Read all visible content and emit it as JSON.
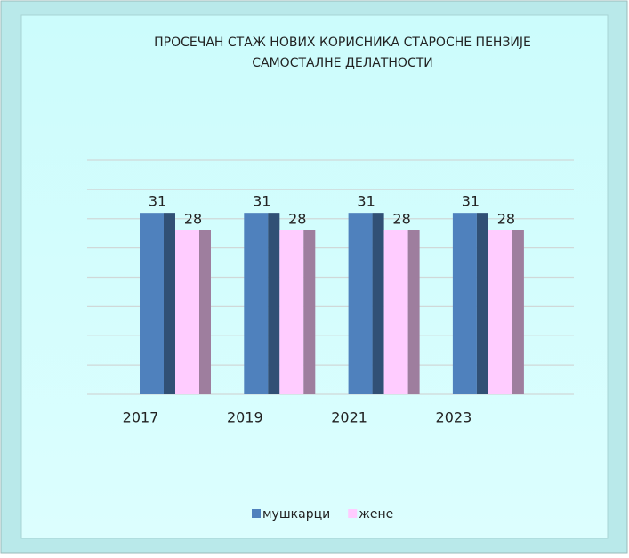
{
  "chart_data": {
    "type": "bar3d",
    "title": "ПРОСЕЧАН СТАЖ НОВИХ КОРИСНИКА СТАРОСНЕ ПЕНЗИЈЕ",
    "subtitle": "САМОСТАЛНЕ ДЕЛАТНОСТИ",
    "categories": [
      "2017",
      "2019",
      "2021",
      "2023"
    ],
    "series": [
      {
        "name": "мушкарци",
        "color": "#4f81bd",
        "values": [
          31,
          31,
          31,
          31
        ]
      },
      {
        "name": "жене",
        "color": "#ffccff",
        "values": [
          28,
          28,
          28,
          28
        ]
      }
    ],
    "ylim": [
      0,
      40
    ],
    "yticks": [
      0,
      5,
      10,
      15,
      20,
      25,
      30,
      35,
      40
    ],
    "grid": true,
    "legend": "bottom"
  }
}
